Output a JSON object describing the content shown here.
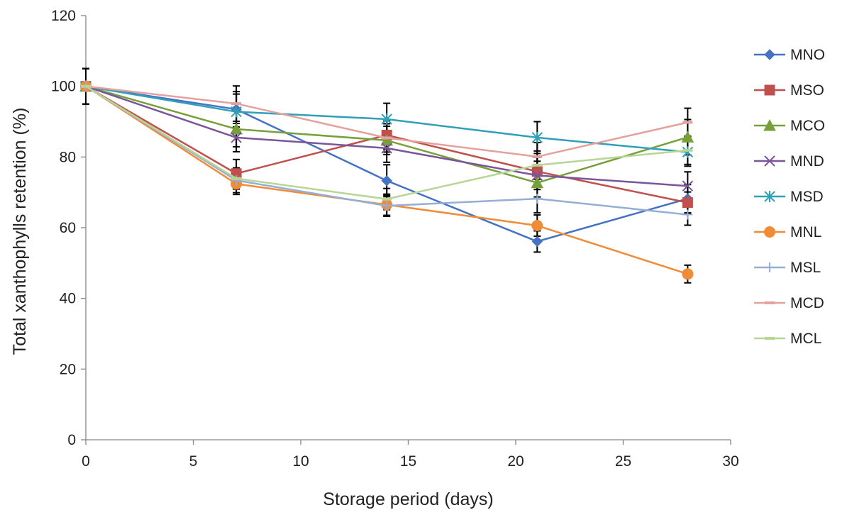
{
  "chart_data": {
    "type": "line",
    "title": "",
    "xlabel": "Storage period (days)",
    "ylabel": "Total xanthophylls retention (%)",
    "xlim": [
      0,
      30
    ],
    "ylim": [
      0,
      120
    ],
    "xticks": [
      0,
      5,
      10,
      15,
      20,
      25,
      30
    ],
    "yticks": [
      0,
      20,
      40,
      60,
      80,
      100,
      120
    ],
    "grid": false,
    "legend_position": "right",
    "x": [
      0,
      7,
      14,
      21,
      28
    ],
    "series": [
      {
        "name": "MNO",
        "color": "#4472C4",
        "marker": "diamond",
        "values": [
          100,
          93.5,
          73.3,
          56.1,
          68.2
        ],
        "errors": [
          5,
          5,
          4.5,
          3,
          4
        ]
      },
      {
        "name": "MSO",
        "color": "#C0504D",
        "marker": "square",
        "values": [
          100,
          75.3,
          86.2,
          75.9,
          67.1
        ],
        "errors": [
          5,
          4,
          4,
          4,
          3
        ]
      },
      {
        "name": "MCO",
        "color": "#77A03A",
        "marker": "triangle",
        "values": [
          100,
          87.9,
          84.7,
          72.7,
          85.6
        ],
        "errors": [
          5,
          5,
          4,
          4,
          5
        ]
      },
      {
        "name": "MND",
        "color": "#7B559A",
        "marker": "x",
        "values": [
          100,
          85.5,
          82.5,
          74.8,
          71.8
        ],
        "errors": [
          5,
          4,
          4,
          4,
          4
        ]
      },
      {
        "name": "MSD",
        "color": "#2FA0B8",
        "marker": "star",
        "values": [
          100,
          92.8,
          90.7,
          85.5,
          81.4
        ],
        "errors": [
          5,
          5,
          4.5,
          4.5,
          4
        ]
      },
      {
        "name": "MNL",
        "color": "#F08B36",
        "marker": "circle",
        "values": [
          100,
          72.4,
          66.5,
          60.6,
          46.9
        ],
        "errors": [
          5,
          3,
          3,
          3,
          2.5
        ]
      },
      {
        "name": "MSL",
        "color": "#96ADD6",
        "marker": "plus",
        "values": [
          100,
          73.4,
          66.2,
          68.2,
          63.7
        ],
        "errors": [
          5,
          3.5,
          3,
          4,
          3
        ]
      },
      {
        "name": "MCD",
        "color": "#E4A19D",
        "marker": "dash",
        "values": [
          100,
          95.1,
          85.4,
          80.1,
          89.8
        ],
        "errors": [
          5,
          5,
          4,
          4,
          4
        ]
      },
      {
        "name": "MCL",
        "color": "#B7D594",
        "marker": "dash",
        "values": [
          100,
          73.9,
          68.1,
          77.7,
          81.9
        ],
        "errors": [
          5,
          3,
          3,
          4,
          4
        ]
      }
    ]
  }
}
